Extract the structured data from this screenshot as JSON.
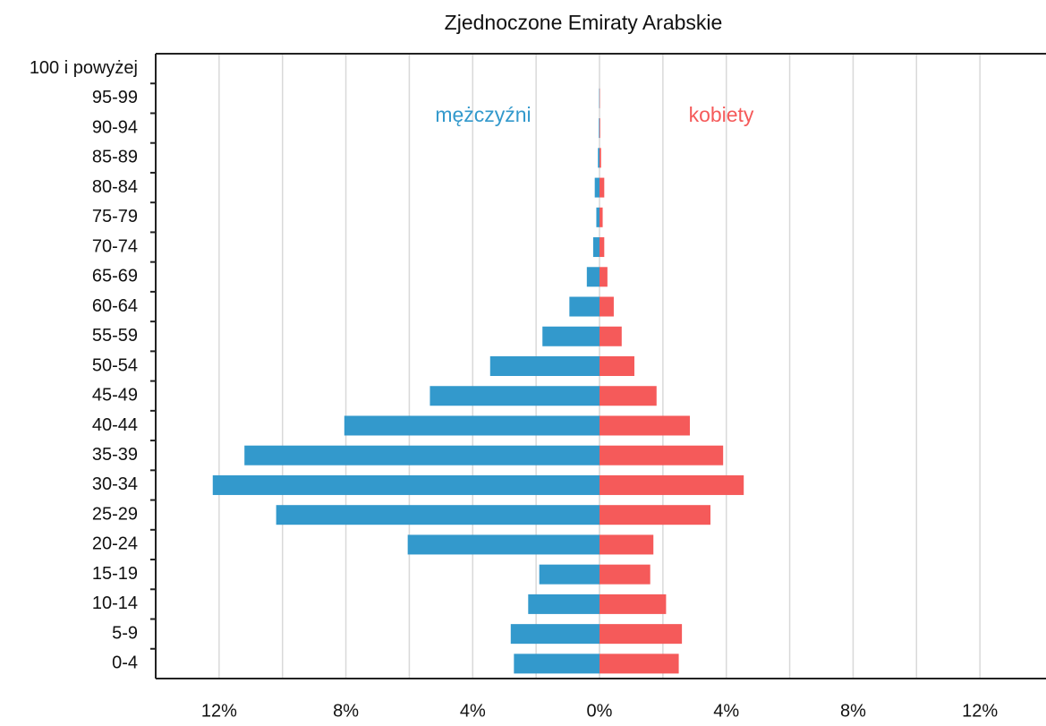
{
  "chart_data": {
    "type": "pyramid",
    "title": "Zjednoczone Emiraty Arabskie",
    "categories": [
      "0-4",
      "5-9",
      "10-14",
      "15-19",
      "20-24",
      "25-29",
      "30-34",
      "35-39",
      "40-44",
      "45-49",
      "50-54",
      "55-59",
      "60-64",
      "65-69",
      "70-74",
      "75-79",
      "80-84",
      "85-89",
      "90-94",
      "95-99",
      "100 i powyżej"
    ],
    "series": [
      {
        "name": "mężczyźni",
        "color": "#3399cc",
        "values": [
          -2.7,
          -2.8,
          -2.25,
          -1.9,
          -6.05,
          -10.2,
          -12.2,
          -11.2,
          -8.05,
          -5.35,
          -3.45,
          -1.8,
          -0.95,
          -0.4,
          -0.2,
          -0.1,
          -0.15,
          -0.05,
          -0.02,
          -0.01,
          0
        ]
      },
      {
        "name": "kobiety",
        "color": "#f55a5a",
        "values": [
          2.5,
          2.6,
          2.1,
          1.6,
          1.7,
          3.5,
          4.55,
          3.9,
          2.85,
          1.8,
          1.1,
          0.7,
          0.45,
          0.25,
          0.15,
          0.1,
          0.15,
          0.05,
          0.02,
          0.01,
          0
        ]
      }
    ],
    "xlim": [
      -14,
      14
    ],
    "xticks": [
      {
        "value": -12,
        "label": "12%"
      },
      {
        "value": -8,
        "label": "8%"
      },
      {
        "value": -4,
        "label": "4%"
      },
      {
        "value": 0,
        "label": "0%"
      },
      {
        "value": 4,
        "label": "4%"
      },
      {
        "value": 8,
        "label": "8%"
      },
      {
        "value": 12,
        "label": "12%"
      }
    ],
    "minor_xticks": [
      -10,
      -6,
      -2,
      2,
      6,
      10
    ],
    "grid": true
  }
}
